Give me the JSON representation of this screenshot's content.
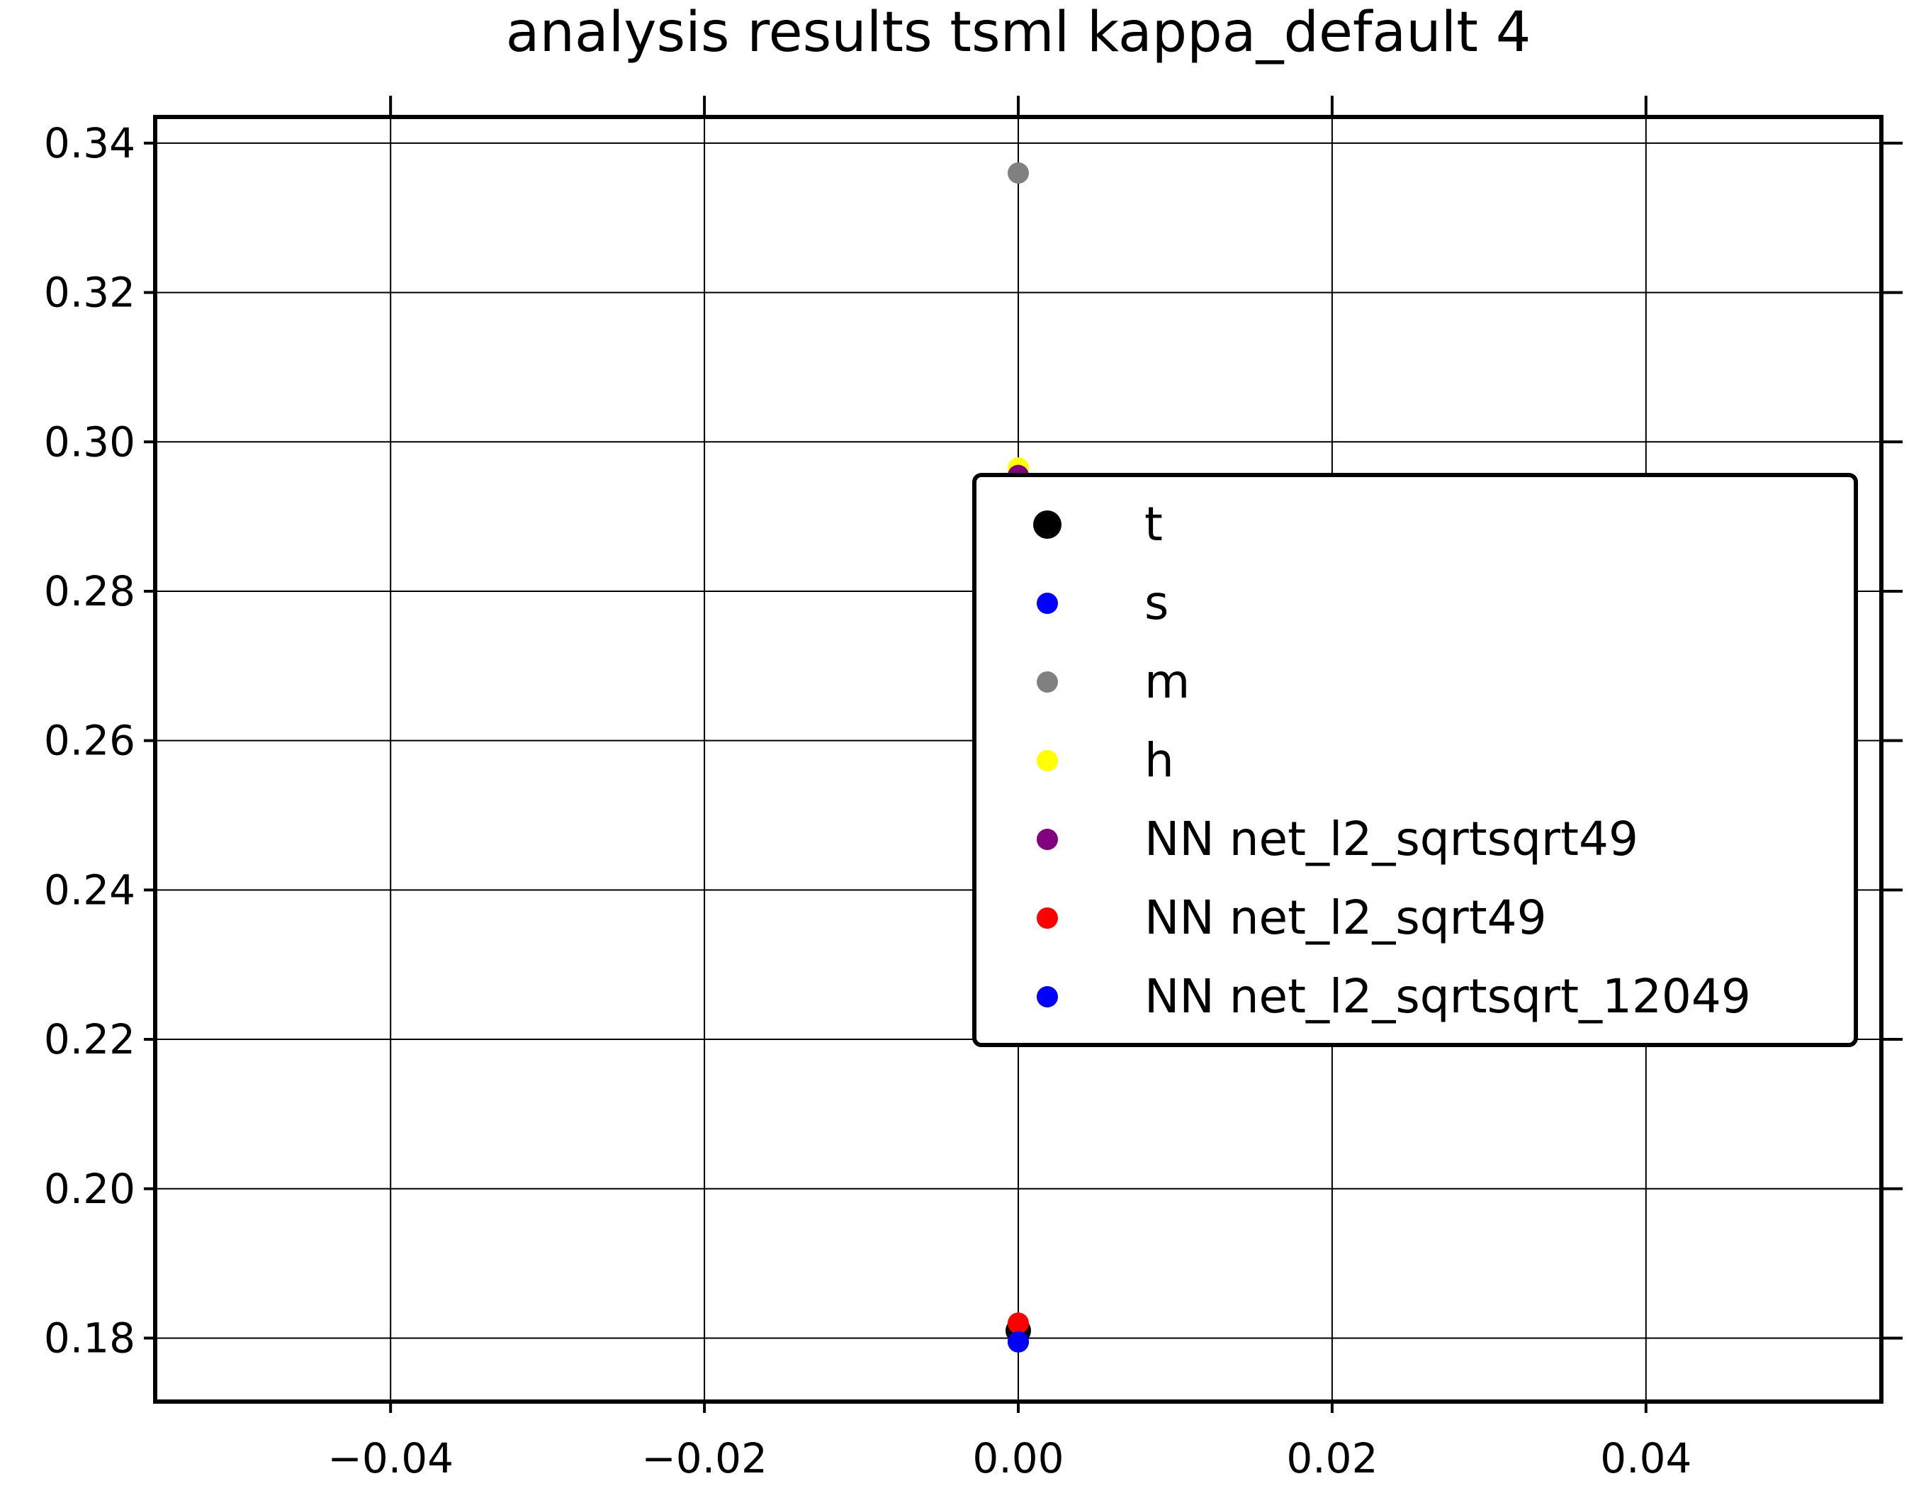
{
  "chart_data": {
    "type": "scatter",
    "title": "analysis results tsml  kappa_default 4",
    "xlabel": "",
    "ylabel": "",
    "xlim": [
      -0.055,
      0.055
    ],
    "ylim": [
      0.1715,
      0.3435
    ],
    "xticks": [
      -0.04,
      -0.02,
      0.0,
      0.02,
      0.04
    ],
    "xtick_labels": [
      "−0.04",
      "−0.02",
      "0.00",
      "0.02",
      "0.04"
    ],
    "yticks": [
      0.18,
      0.2,
      0.22,
      0.24,
      0.26,
      0.28,
      0.3,
      0.32,
      0.34
    ],
    "ytick_labels": [
      "0.18",
      "0.20",
      "0.22",
      "0.24",
      "0.26",
      "0.28",
      "0.30",
      "0.32",
      "0.34"
    ],
    "grid": true,
    "legend_position": "center-right",
    "series": [
      {
        "name": "t",
        "color": "#000000",
        "marker": "large",
        "points": [
          {
            "x": 0.0,
            "y": 0.181
          }
        ]
      },
      {
        "name": "s",
        "color": "#0000ff",
        "marker": "small",
        "points": [
          {
            "x": 0.0,
            "y": 0.1795
          }
        ]
      },
      {
        "name": "m",
        "color": "#808080",
        "marker": "small",
        "points": [
          {
            "x": 0.0,
            "y": 0.336
          }
        ]
      },
      {
        "name": "h",
        "color": "#ffff00",
        "marker": "small",
        "points": [
          {
            "x": 0.0,
            "y": 0.2965
          }
        ]
      },
      {
        "name": "NN net_l2_sqrtsqrt49",
        "color": "#800080",
        "marker": "small",
        "points": [
          {
            "x": 0.0,
            "y": 0.2955
          }
        ]
      },
      {
        "name": "NN net_l2_sqrt49",
        "color": "#ff0000",
        "marker": "small",
        "points": [
          {
            "x": 0.0,
            "y": 0.182
          }
        ]
      },
      {
        "name": "NN net_l2_sqrtsqrt_12049",
        "color": "#0000ff",
        "marker": "small",
        "points": [
          {
            "x": 0.0,
            "y": 0.1795
          }
        ]
      }
    ]
  }
}
